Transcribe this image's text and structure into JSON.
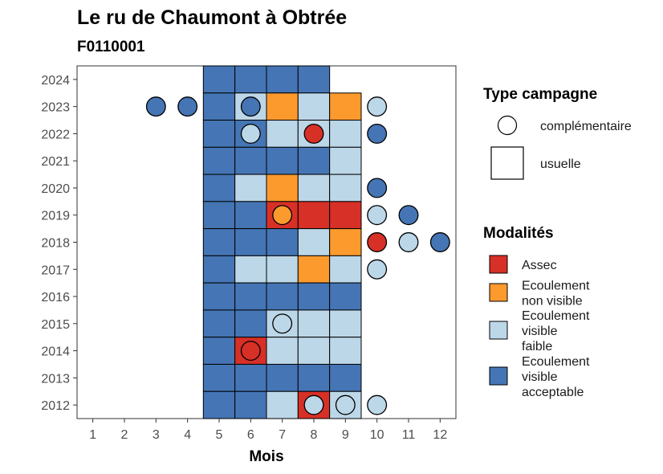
{
  "chart_data": {
    "type": "heatmap",
    "title": "Le ru de Chaumont  à Obtrée",
    "subtitle": "F0110001",
    "xlabel": "Mois",
    "ylabel": "",
    "x_ticks": [
      "1",
      "2",
      "3",
      "4",
      "5",
      "6",
      "7",
      "8",
      "9",
      "10",
      "11",
      "12"
    ],
    "y_ticks": [
      "2012",
      "2013",
      "2014",
      "2015",
      "2016",
      "2017",
      "2018",
      "2019",
      "2020",
      "2021",
      "2022",
      "2023",
      "2024"
    ],
    "xlim": [
      0.5,
      12.5
    ],
    "ylim": [
      2011.5,
      2024.5
    ],
    "colors": {
      "Assec": "#d73027",
      "Ecoulement non visible": "#fd9a2e",
      "Ecoulement visible faible": "#bcd7e8",
      "Ecoulement visible acceptable": "#4575b4"
    },
    "legend_campagne": {
      "title": "Type campagne",
      "items": [
        {
          "shape": "circle",
          "label": "complémentaire"
        },
        {
          "shape": "square",
          "label": "usuelle"
        }
      ]
    },
    "legend_modalites": {
      "title": "Modalités",
      "items": [
        {
          "key": "Assec",
          "lines": [
            "Assec"
          ]
        },
        {
          "key": "Ecoulement non visible",
          "lines": [
            "Ecoulement",
            "non visible"
          ]
        },
        {
          "key": "Ecoulement visible faible",
          "lines": [
            "Ecoulement",
            "visible",
            "faible"
          ]
        },
        {
          "key": "Ecoulement visible acceptable",
          "lines": [
            "Ecoulement",
            "visible",
            "acceptable"
          ]
        }
      ]
    },
    "usuelle": [
      {
        "year": 2024,
        "month": 5,
        "value": "Ecoulement visible acceptable"
      },
      {
        "year": 2024,
        "month": 6,
        "value": "Ecoulement visible acceptable"
      },
      {
        "year": 2024,
        "month": 7,
        "value": "Ecoulement visible acceptable"
      },
      {
        "year": 2024,
        "month": 8,
        "value": "Ecoulement visible acceptable"
      },
      {
        "year": 2023,
        "month": 5,
        "value": "Ecoulement visible acceptable"
      },
      {
        "year": 2023,
        "month": 6,
        "value": "Ecoulement visible faible"
      },
      {
        "year": 2023,
        "month": 7,
        "value": "Ecoulement non visible"
      },
      {
        "year": 2023,
        "month": 8,
        "value": "Ecoulement visible faible"
      },
      {
        "year": 2023,
        "month": 9,
        "value": "Ecoulement non visible"
      },
      {
        "year": 2022,
        "month": 5,
        "value": "Ecoulement visible acceptable"
      },
      {
        "year": 2022,
        "month": 6,
        "value": "Ecoulement visible acceptable"
      },
      {
        "year": 2022,
        "month": 7,
        "value": "Ecoulement visible faible"
      },
      {
        "year": 2022,
        "month": 8,
        "value": "Ecoulement visible faible"
      },
      {
        "year": 2022,
        "month": 9,
        "value": "Ecoulement visible faible"
      },
      {
        "year": 2021,
        "month": 5,
        "value": "Ecoulement visible acceptable"
      },
      {
        "year": 2021,
        "month": 6,
        "value": "Ecoulement visible acceptable"
      },
      {
        "year": 2021,
        "month": 7,
        "value": "Ecoulement visible acceptable"
      },
      {
        "year": 2021,
        "month": 8,
        "value": "Ecoulement visible acceptable"
      },
      {
        "year": 2021,
        "month": 9,
        "value": "Ecoulement visible faible"
      },
      {
        "year": 2020,
        "month": 5,
        "value": "Ecoulement visible acceptable"
      },
      {
        "year": 2020,
        "month": 6,
        "value": "Ecoulement visible faible"
      },
      {
        "year": 2020,
        "month": 7,
        "value": "Ecoulement non visible"
      },
      {
        "year": 2020,
        "month": 8,
        "value": "Ecoulement visible faible"
      },
      {
        "year": 2020,
        "month": 9,
        "value": "Ecoulement visible faible"
      },
      {
        "year": 2019,
        "month": 5,
        "value": "Ecoulement visible acceptable"
      },
      {
        "year": 2019,
        "month": 6,
        "value": "Ecoulement visible acceptable"
      },
      {
        "year": 2019,
        "month": 7,
        "value": "Assec"
      },
      {
        "year": 2019,
        "month": 8,
        "value": "Assec"
      },
      {
        "year": 2019,
        "month": 9,
        "value": "Assec"
      },
      {
        "year": 2018,
        "month": 5,
        "value": "Ecoulement visible acceptable"
      },
      {
        "year": 2018,
        "month": 6,
        "value": "Ecoulement visible acceptable"
      },
      {
        "year": 2018,
        "month": 7,
        "value": "Ecoulement visible acceptable"
      },
      {
        "year": 2018,
        "month": 8,
        "value": "Ecoulement visible faible"
      },
      {
        "year": 2018,
        "month": 9,
        "value": "Ecoulement non visible"
      },
      {
        "year": 2017,
        "month": 5,
        "value": "Ecoulement visible acceptable"
      },
      {
        "year": 2017,
        "month": 6,
        "value": "Ecoulement visible faible"
      },
      {
        "year": 2017,
        "month": 7,
        "value": "Ecoulement visible faible"
      },
      {
        "year": 2017,
        "month": 8,
        "value": "Ecoulement non visible"
      },
      {
        "year": 2017,
        "month": 9,
        "value": "Ecoulement visible faible"
      },
      {
        "year": 2016,
        "month": 5,
        "value": "Ecoulement visible acceptable"
      },
      {
        "year": 2016,
        "month": 6,
        "value": "Ecoulement visible acceptable"
      },
      {
        "year": 2016,
        "month": 7,
        "value": "Ecoulement visible acceptable"
      },
      {
        "year": 2016,
        "month": 8,
        "value": "Ecoulement visible acceptable"
      },
      {
        "year": 2016,
        "month": 9,
        "value": "Ecoulement visible acceptable"
      },
      {
        "year": 2015,
        "month": 5,
        "value": "Ecoulement visible acceptable"
      },
      {
        "year": 2015,
        "month": 6,
        "value": "Ecoulement visible acceptable"
      },
      {
        "year": 2015,
        "month": 7,
        "value": "Ecoulement visible faible"
      },
      {
        "year": 2015,
        "month": 8,
        "value": "Ecoulement visible faible"
      },
      {
        "year": 2015,
        "month": 9,
        "value": "Ecoulement visible faible"
      },
      {
        "year": 2014,
        "month": 5,
        "value": "Ecoulement visible acceptable"
      },
      {
        "year": 2014,
        "month": 6,
        "value": "Assec"
      },
      {
        "year": 2014,
        "month": 7,
        "value": "Ecoulement visible faible"
      },
      {
        "year": 2014,
        "month": 8,
        "value": "Ecoulement visible faible"
      },
      {
        "year": 2014,
        "month": 9,
        "value": "Ecoulement visible faible"
      },
      {
        "year": 2013,
        "month": 5,
        "value": "Ecoulement visible acceptable"
      },
      {
        "year": 2013,
        "month": 6,
        "value": "Ecoulement visible acceptable"
      },
      {
        "year": 2013,
        "month": 7,
        "value": "Ecoulement visible acceptable"
      },
      {
        "year": 2013,
        "month": 8,
        "value": "Ecoulement visible acceptable"
      },
      {
        "year": 2013,
        "month": 9,
        "value": "Ecoulement visible acceptable"
      },
      {
        "year": 2012,
        "month": 5,
        "value": "Ecoulement visible acceptable"
      },
      {
        "year": 2012,
        "month": 6,
        "value": "Ecoulement visible acceptable"
      },
      {
        "year": 2012,
        "month": 7,
        "value": "Ecoulement visible faible"
      },
      {
        "year": 2012,
        "month": 8,
        "value": "Assec"
      },
      {
        "year": 2012,
        "month": 9,
        "value": "Ecoulement visible faible"
      }
    ],
    "complementaire": [
      {
        "year": 2023,
        "month": 3,
        "value": "Ecoulement visible acceptable"
      },
      {
        "year": 2023,
        "month": 4,
        "value": "Ecoulement visible acceptable"
      },
      {
        "year": 2023,
        "month": 6,
        "value": "Ecoulement visible acceptable"
      },
      {
        "year": 2023,
        "month": 10,
        "value": "Ecoulement visible faible"
      },
      {
        "year": 2022,
        "month": 6,
        "value": "Ecoulement visible faible"
      },
      {
        "year": 2022,
        "month": 8,
        "value": "Assec"
      },
      {
        "year": 2022,
        "month": 10,
        "value": "Ecoulement visible acceptable"
      },
      {
        "year": 2020,
        "month": 10,
        "value": "Ecoulement visible acceptable"
      },
      {
        "year": 2019,
        "month": 7,
        "value": "Ecoulement non visible"
      },
      {
        "year": 2019,
        "month": 10,
        "value": "Ecoulement visible faible"
      },
      {
        "year": 2019,
        "month": 11,
        "value": "Ecoulement visible acceptable"
      },
      {
        "year": 2018,
        "month": 10,
        "value": "Assec"
      },
      {
        "year": 2018,
        "month": 11,
        "value": "Ecoulement visible faible"
      },
      {
        "year": 2018,
        "month": 12,
        "value": "Ecoulement visible acceptable"
      },
      {
        "year": 2017,
        "month": 10,
        "value": "Ecoulement visible faible"
      },
      {
        "year": 2015,
        "month": 7,
        "value": "Ecoulement visible faible"
      },
      {
        "year": 2014,
        "month": 6,
        "value": "Assec"
      },
      {
        "year": 2012,
        "month": 8,
        "value": "Ecoulement visible faible"
      },
      {
        "year": 2012,
        "month": 9,
        "value": "Ecoulement visible faible"
      },
      {
        "year": 2012,
        "month": 10,
        "value": "Ecoulement visible faible"
      }
    ]
  }
}
